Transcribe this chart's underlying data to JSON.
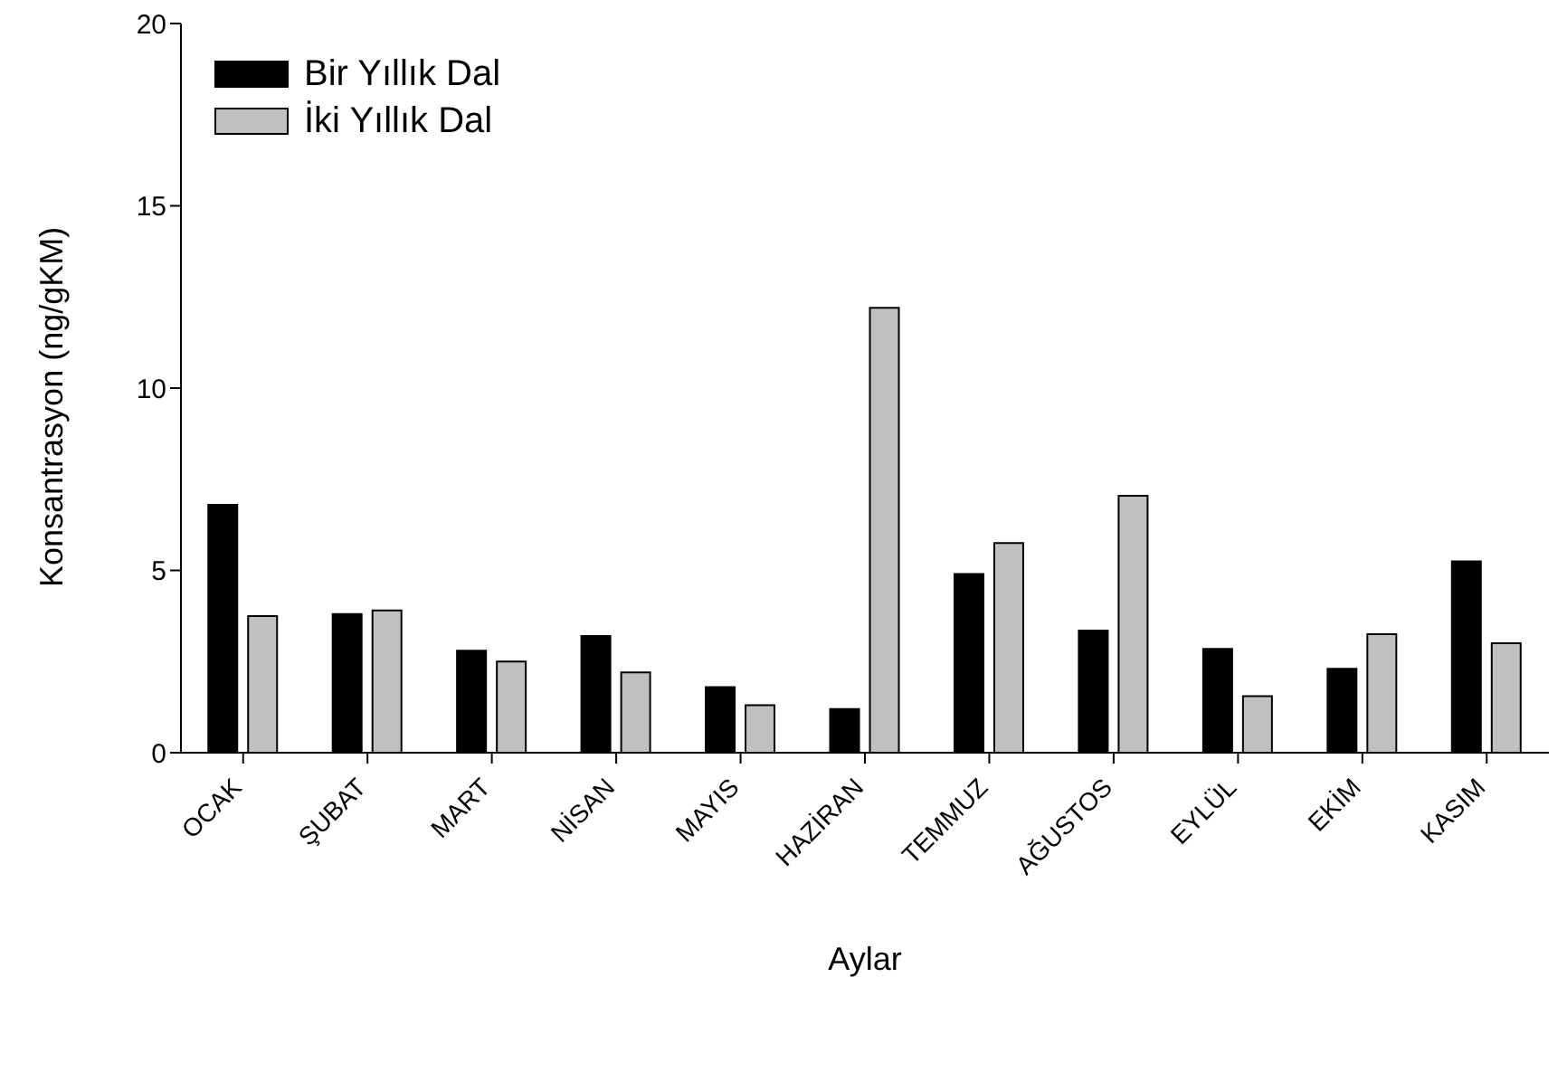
{
  "chart_data": {
    "type": "bar",
    "xlabel": "Aylar",
    "ylabel": "Konsantrasyon (ng/gKM)",
    "categories": [
      "OCAK",
      "ŞUBAT",
      "MART",
      "NİSAN",
      "MAYIS",
      "HAZİRAN",
      "TEMMUZ",
      "AĞUSTOS",
      "EYLÜL",
      "EKİM",
      "KASIM"
    ],
    "series": [
      {
        "name": "Bir Yıllık Dal",
        "color": "#000000",
        "values": [
          6.8,
          3.8,
          2.8,
          3.2,
          1.8,
          1.2,
          4.9,
          3.35,
          2.85,
          2.3,
          5.25
        ]
      },
      {
        "name": "İki Yıllık Dal",
        "color": "#c0c0c0",
        "values": [
          3.75,
          3.9,
          2.5,
          2.2,
          1.3,
          12.2,
          5.75,
          7.05,
          1.55,
          3.25,
          3.0
        ]
      }
    ],
    "ylim": [
      0,
      20
    ],
    "yticks": [
      0,
      5,
      10,
      15,
      20
    ],
    "grid": false,
    "legend": "top left"
  }
}
